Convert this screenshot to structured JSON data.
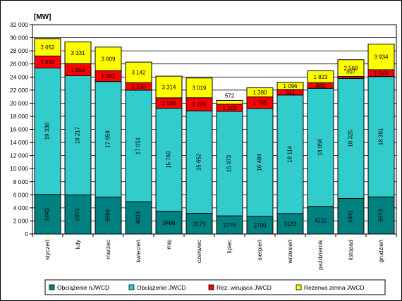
{
  "chart_data": {
    "type": "bar",
    "stacked": true,
    "unit_label": "[MW]",
    "categories": [
      "styczeń",
      "luty",
      "marzec",
      "kwiecień",
      "maj",
      "czerwiec",
      "lipiec",
      "sierpień",
      "wrzesień",
      "październik",
      "listopad",
      "grudzień"
    ],
    "ylim": [
      0,
      32000
    ],
    "yticks": [
      "0",
      "2 000",
      "4 000",
      "6 000",
      "8 000",
      "10 000",
      "12 000",
      "14 000",
      "16 000",
      "18 000",
      "20 000",
      "22 000",
      "24 000",
      "26 000",
      "28 000",
      "30 000",
      "32 000"
    ],
    "grid": true,
    "legend_position": "bottom",
    "series": [
      {
        "name": "Obciążenie nJWCD",
        "color": "#00807f",
        "values": [
          6043,
          5973,
          5656,
          4933,
          3466,
          3173,
          2775,
          2700,
          3133,
          4222,
          5441,
          5673
        ],
        "labels": [
          "6043",
          "5973",
          "5656",
          "4933",
          "3466",
          "3173",
          "2775",
          "2700",
          "3133",
          "4222",
          "5441",
          "5673"
        ]
      },
      {
        "name": "Obciążenie JWCD",
        "color": "#33cccc",
        "values": [
          19336,
          18217,
          17659,
          17051,
          15760,
          15652,
          15973,
          16484,
          18114,
          18056,
          18325,
          18391
        ],
        "labels": [
          "19 336",
          "18 217",
          "17 659",
          "17 051",
          "15 760",
          "15 652",
          "15 973",
          "16 484",
          "18 114",
          "18 056",
          "18 325",
          "18 391"
        ]
      },
      {
        "name": "Rez. wirująca JWCD",
        "color": "#ff0000",
        "values": [
          1833,
          1850,
          1653,
          1150,
          1588,
          2006,
          1103,
          1785,
          841,
          842,
          307,
          1044
        ],
        "labels": [
          "1 833",
          "1 850",
          "1 653",
          "1 150",
          "1 588",
          "2 006",
          "1 103",
          "1 785",
          "841",
          "842",
          "307",
          "1 044"
        ]
      },
      {
        "name": "Rezerwa zimna JWCD",
        "color": "#ffff00",
        "values": [
          2652,
          3331,
          3609,
          3142,
          3314,
          3019,
          572,
          1380,
          1096,
          1823,
          2568,
          3934
        ],
        "labels": [
          "2 652",
          "3 331",
          "3 609",
          "3 142",
          "3 314",
          "3 019",
          "572",
          "1 380",
          "1 096",
          "1 823",
          "2 568",
          "3 934"
        ]
      }
    ]
  }
}
